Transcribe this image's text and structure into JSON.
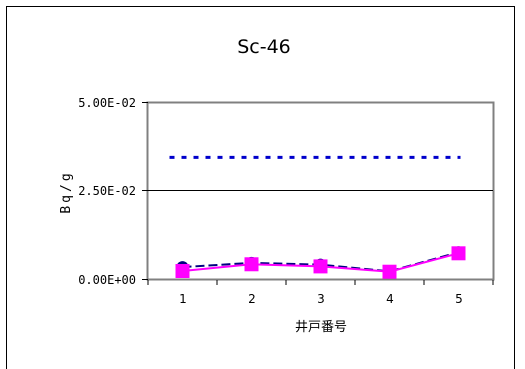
{
  "chart_data": {
    "type": "line",
    "title": "Sc-46",
    "xlabel": "井戸番号",
    "ylabel": "Bq/g",
    "categories": [
      "1",
      "2",
      "3",
      "4",
      "5"
    ],
    "y_ticks": [
      "0.00E+00",
      "2.50E-02",
      "5.00E-02"
    ],
    "ylim": [
      0,
      0.05
    ],
    "grid": "horizontal at 2.50E-02",
    "legend": "none",
    "series": [
      {
        "values": [
          0.0035,
          0.0047,
          0.0042,
          0.0023,
          0.0077
        ],
        "color": "#000080",
        "style": "dashed",
        "marker": "circle"
      },
      {
        "values": [
          0.0024,
          0.0043,
          0.0037,
          0.0022,
          0.0074
        ],
        "color": "#ff00ff",
        "style": "solid",
        "marker": "square"
      },
      {
        "values": [
          0.0345,
          0.0345,
          0.0345,
          0.0345,
          0.0345
        ],
        "color": "#0000cc",
        "style": "dotted",
        "marker": "none"
      }
    ]
  }
}
